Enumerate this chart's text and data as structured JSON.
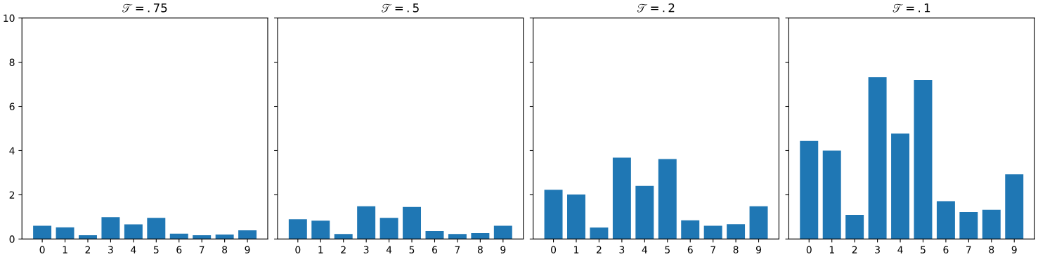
{
  "chart_data": [
    {
      "type": "bar",
      "title": "𝒯=.75",
      "categories": [
        "0",
        "1",
        "2",
        "3",
        "4",
        "5",
        "6",
        "7",
        "8",
        "9"
      ],
      "color": "#1f77b4",
      "values": [
        0.6,
        0.53,
        0.17,
        0.99,
        0.66,
        0.96,
        0.24,
        0.17,
        0.2,
        0.39
      ],
      "ylim": [
        0,
        10
      ],
      "yticks": [
        0,
        2,
        4,
        6,
        8,
        10
      ],
      "grid": false
    },
    {
      "type": "bar",
      "title": "𝒯=.5",
      "categories": [
        "0",
        "1",
        "2",
        "3",
        "4",
        "5",
        "6",
        "7",
        "8",
        "9"
      ],
      "color": "#1f77b4",
      "values": [
        0.89,
        0.83,
        0.23,
        1.48,
        0.96,
        1.45,
        0.36,
        0.23,
        0.27,
        0.6
      ],
      "ylim": [
        0,
        10
      ],
      "yticks": [
        0,
        2,
        4,
        6,
        8,
        10
      ],
      "grid": false,
      "tick_labels": "x"
    },
    {
      "type": "bar",
      "title": "𝒯=.2",
      "categories": [
        "0",
        "1",
        "2",
        "3",
        "4",
        "5",
        "6",
        "7",
        "8",
        "9"
      ],
      "color": "#1f77b4",
      "values": [
        2.23,
        2.01,
        0.52,
        3.68,
        2.4,
        3.62,
        0.85,
        0.6,
        0.67,
        1.48
      ],
      "ylim": [
        0,
        10
      ],
      "yticks": [
        0,
        2,
        4,
        6,
        8,
        10
      ],
      "grid": false,
      "tick_labels": "x"
    },
    {
      "type": "bar",
      "title": "𝒯=.1",
      "categories": [
        "0",
        "1",
        "2",
        "3",
        "4",
        "5",
        "6",
        "7",
        "8",
        "9"
      ],
      "color": "#1f77b4",
      "values": [
        4.44,
        4.0,
        1.09,
        7.32,
        4.77,
        7.19,
        1.71,
        1.22,
        1.32,
        2.93
      ],
      "ylim": [
        0,
        10
      ],
      "yticks": [
        0,
        2,
        4,
        6,
        8,
        10
      ],
      "grid": false,
      "tick_labels": "x"
    }
  ]
}
